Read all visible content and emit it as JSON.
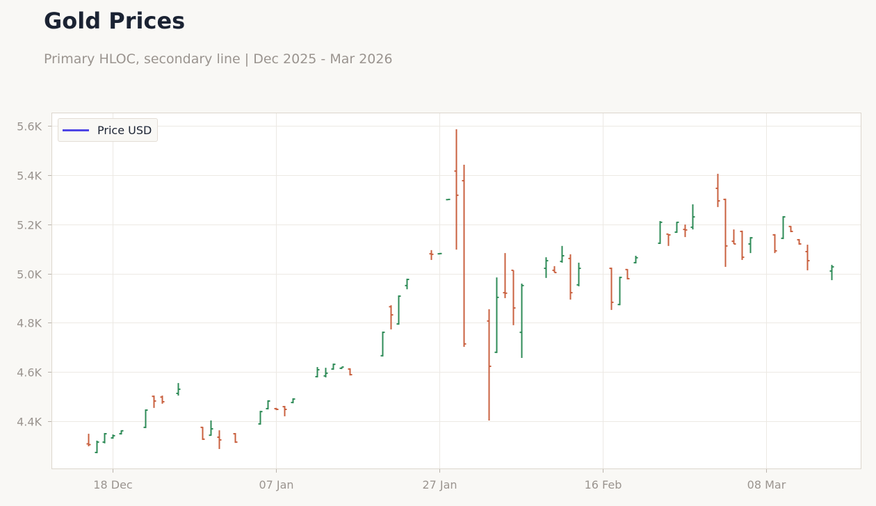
{
  "header": {
    "title": "Gold Prices",
    "subtitle": "Primary HLOC, secondary line | Dec 2025 - Mar 2026"
  },
  "legend": {
    "items": [
      {
        "label": "Price USD",
        "color": "#4f46e5"
      }
    ]
  },
  "colors": {
    "up": "#2e8b57",
    "down": "#c9603f",
    "grid": "#ece9e4",
    "frame": "#dcd6cd",
    "plot_bg": "#ffffff"
  },
  "axes": {
    "y_ticks": [
      "5.6K",
      "5.4K",
      "5.2K",
      "5.0K",
      "4.8K",
      "4.6K",
      "4.4K"
    ],
    "y_tick_values": [
      5600,
      5400,
      5200,
      5000,
      4800,
      4600,
      4400
    ],
    "x_ticks": [
      "18 Dec",
      "07 Jan",
      "27 Jan",
      "16 Feb",
      "08 Mar"
    ]
  },
  "chart_data": {
    "type": "ohlc",
    "title": "Gold Prices",
    "subtitle": "Primary HLOC, secondary line | Dec 2025 - Mar 2026",
    "xlabel": "",
    "ylabel": "",
    "ylim": [
      4210,
      5650
    ],
    "grid": true,
    "legend": {
      "position": "upper left",
      "entries": [
        "Price USD"
      ]
    },
    "x_tick_labels": [
      "18 Dec",
      "07 Jan",
      "27 Jan",
      "16 Feb",
      "08 Mar"
    ],
    "y_tick_labels": [
      "4.4K",
      "4.6K",
      "4.8K",
      "5.0K",
      "5.2K",
      "5.4K",
      "5.6K"
    ],
    "series": [
      {
        "name": "Price USD",
        "fields": [
          "date",
          "open",
          "high",
          "low",
          "close"
        ],
        "values": [
          [
            "2025-12-15",
            4308,
            4349,
            4298,
            4305
          ],
          [
            "2025-12-16",
            4273,
            4321,
            4270,
            4315
          ],
          [
            "2025-12-17",
            4315,
            4352,
            4310,
            4349
          ],
          [
            "2025-12-18",
            4332,
            4346,
            4329,
            4341
          ],
          [
            "2025-12-19",
            4349,
            4363,
            4346,
            4361
          ],
          [
            "2025-12-22",
            4375,
            4448,
            4372,
            4445
          ],
          [
            "2025-12-23",
            4501,
            4504,
            4454,
            4482
          ],
          [
            "2025-12-24",
            4498,
            4504,
            4471,
            4479
          ],
          [
            "2025-12-26",
            4513,
            4555,
            4504,
            4530
          ],
          [
            "2025-12-29",
            4375,
            4377,
            4324,
            4327
          ],
          [
            "2025-12-30",
            4343,
            4403,
            4341,
            4369
          ],
          [
            "2025-12-31",
            4335,
            4363,
            4287,
            4324
          ],
          [
            "2026-01-02",
            4349,
            4352,
            4312,
            4315
          ],
          [
            "2026-01-05",
            4389,
            4442,
            4386,
            4439
          ],
          [
            "2026-01-06",
            4451,
            4485,
            4448,
            4482
          ],
          [
            "2026-01-07",
            4451,
            4454,
            4445,
            4448
          ],
          [
            "2026-01-08",
            4459,
            4462,
            4420,
            4448
          ],
          [
            "2026-01-09",
            4476,
            4493,
            4473,
            4490
          ],
          [
            "2026-01-12",
            4581,
            4620,
            4578,
            4609
          ],
          [
            "2026-01-13",
            4584,
            4617,
            4578,
            4595
          ],
          [
            "2026-01-14",
            4612,
            4634,
            4609,
            4631
          ],
          [
            "2026-01-15",
            4615,
            4620,
            4612,
            4620
          ],
          [
            "2026-01-16",
            4612,
            4615,
            4586,
            4589
          ],
          [
            "2026-01-20",
            4666,
            4764,
            4663,
            4761
          ],
          [
            "2026-01-21",
            4865,
            4871,
            4773,
            4832
          ],
          [
            "2026-01-22",
            4795,
            4911,
            4792,
            4908
          ],
          [
            "2026-01-23",
            4951,
            4979,
            4936,
            4976
          ],
          [
            "2026-01-26",
            5080,
            5095,
            5055,
            5078
          ],
          [
            "2026-01-27",
            5080,
            5083,
            5078,
            5081
          ],
          [
            "2026-01-28",
            5300,
            5301,
            5298,
            5301
          ],
          [
            "2026-01-29",
            5416,
            5586,
            5097,
            5318
          ],
          [
            "2026-01-30",
            5377,
            5442,
            4702,
            4714
          ],
          [
            "2026-02-02",
            4807,
            4855,
            4403,
            4623
          ],
          [
            "2026-02-03",
            4680,
            4984,
            4677,
            4903
          ],
          [
            "2026-02-04",
            4922,
            5083,
            4900,
            4920
          ],
          [
            "2026-02-05",
            5013,
            5013,
            4790,
            4860
          ],
          [
            "2026-02-06",
            4761,
            4959,
            4657,
            4951
          ],
          [
            "2026-02-09",
            5021,
            5066,
            4982,
            5052
          ],
          [
            "2026-02-10",
            5013,
            5030,
            5004,
            5004
          ],
          [
            "2026-02-11",
            5049,
            5112,
            5044,
            5072
          ],
          [
            "2026-02-12",
            5061,
            5078,
            4894,
            4922
          ],
          [
            "2026-02-13",
            4954,
            5044,
            4948,
            5021
          ],
          [
            "2026-02-17",
            5021,
            5024,
            4852,
            4883
          ],
          [
            "2026-02-18",
            4874,
            4987,
            4871,
            4984
          ],
          [
            "2026-02-19",
            5016,
            5018,
            4976,
            4979
          ],
          [
            "2026-02-20",
            5044,
            5072,
            5041,
            5064
          ],
          [
            "2026-02-23",
            5123,
            5213,
            5120,
            5208
          ],
          [
            "2026-02-24",
            5160,
            5160,
            5112,
            5157
          ],
          [
            "2026-02-25",
            5168,
            5210,
            5165,
            5208
          ],
          [
            "2026-02-26",
            5179,
            5199,
            5148,
            5177
          ],
          [
            "2026-02-27",
            5188,
            5281,
            5179,
            5230
          ],
          [
            "2026-03-02",
            5346,
            5405,
            5270,
            5295
          ],
          [
            "2026-03-03",
            5301,
            5304,
            5027,
            5112
          ],
          [
            "2026-03-04",
            5131,
            5179,
            5120,
            5120
          ],
          [
            "2026-03-05",
            5171,
            5174,
            5055,
            5066
          ],
          [
            "2026-03-06",
            5120,
            5148,
            5083,
            5145
          ],
          [
            "2026-03-09",
            5157,
            5160,
            5083,
            5092
          ],
          [
            "2026-03-10",
            5143,
            5233,
            5140,
            5230
          ],
          [
            "2026-03-11",
            5191,
            5193,
            5168,
            5171
          ],
          [
            "2026-03-12",
            5137,
            5140,
            5117,
            5120
          ],
          [
            "2026-03-13",
            5089,
            5117,
            5013,
            5052
          ],
          [
            "2026-03-16",
            5010,
            5035,
            4973,
            5027
          ]
        ]
      }
    ]
  }
}
